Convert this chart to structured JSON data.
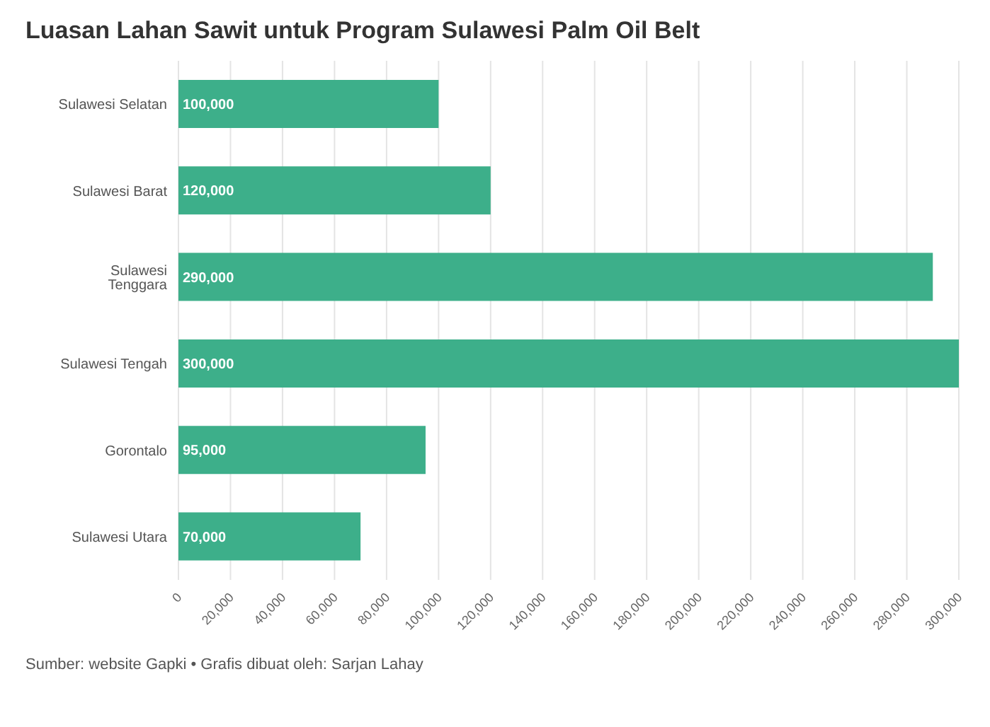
{
  "chart_data": {
    "type": "bar",
    "orientation": "horizontal",
    "title": "Luasan Lahan Sawit untuk Program Sulawesi Palm Oil Belt",
    "categories": [
      "Sulawesi Selatan",
      "Sulawesi Barat",
      "Sulawesi Tenggara",
      "Sulawesi Tengah",
      "Gorontalo",
      "Sulawesi Utara"
    ],
    "values": [
      100000,
      120000,
      290000,
      300000,
      95000,
      70000
    ],
    "value_labels": [
      "100,000",
      "120,000",
      "290,000",
      "300,000",
      "95,000",
      "70,000"
    ],
    "color": "#3daf8a",
    "xlim": [
      0,
      300000
    ],
    "xticks": [
      0,
      {
        "value": 20000,
        "label": "20,000"
      },
      {
        "value": 40000,
        "label": "40,000"
      },
      {
        "value": 60000,
        "label": "60,000"
      },
      {
        "value": 80000,
        "label": "80,000"
      },
      {
        "value": 100000,
        "label": "100,000"
      },
      {
        "value": 120000,
        "label": "120,000"
      },
      {
        "value": 140000,
        "label": "140,000"
      },
      {
        "value": 160000,
        "label": "160,000"
      },
      {
        "value": 180000,
        "label": "180,000"
      },
      {
        "value": 200000,
        "label": "200,000"
      },
      {
        "value": 220000,
        "label": "220,000"
      },
      {
        "value": 240000,
        "label": "240,000"
      },
      {
        "value": 260000,
        "label": "260,000"
      },
      {
        "value": 280000,
        "label": "280,000"
      },
      {
        "value": 300000,
        "label": "300,000"
      }
    ],
    "grid": "x",
    "annotations": [
      "Sumber: website Gapki • Grafis dibuat oleh: Sarjan Lahay"
    ]
  }
}
